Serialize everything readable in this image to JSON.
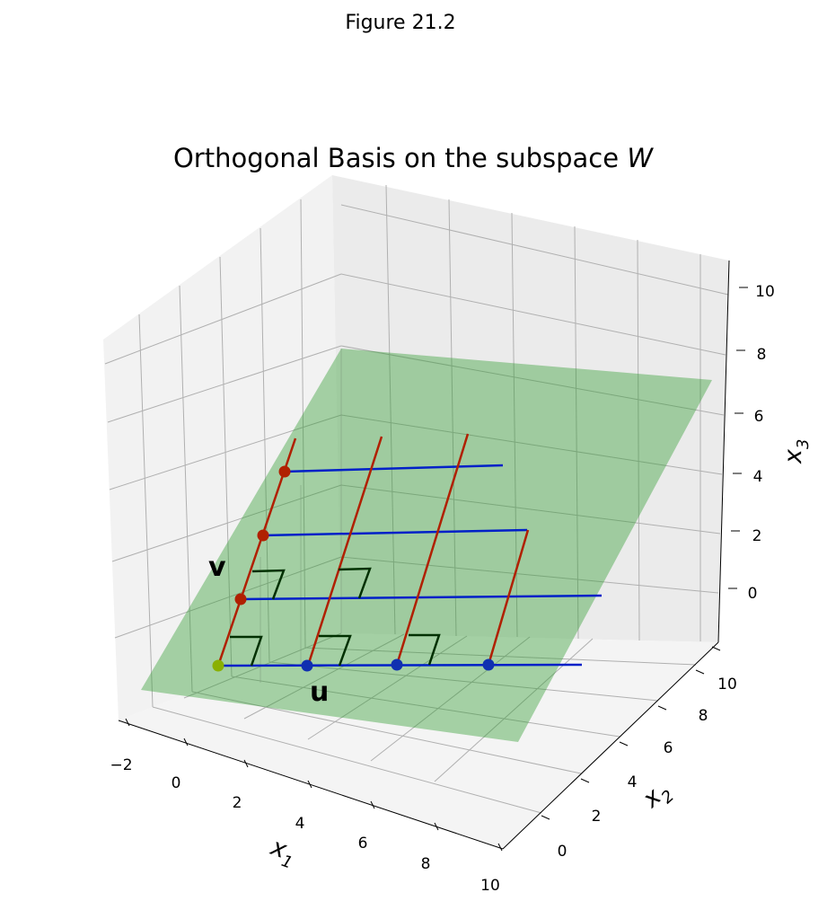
{
  "figure": {
    "suptitle": "Figure 21.2"
  },
  "chart_data": {
    "type": "3d-line",
    "title_prefix": "Orthogonal Basis on the subspace ",
    "title_math": "W",
    "axes": {
      "x": {
        "label": "x",
        "sub": "1",
        "ticks": [
          "−2",
          "0",
          "2",
          "4",
          "6",
          "8",
          "10"
        ]
      },
      "y": {
        "label": "x",
        "sub": "2",
        "ticks": [
          "0",
          "2",
          "4",
          "6",
          "8",
          "10"
        ]
      },
      "z": {
        "label": "x",
        "sub": "3",
        "ticks": [
          "0",
          "2",
          "4",
          "6",
          "8",
          "10"
        ]
      }
    },
    "grid": true,
    "colors": {
      "plane": "#2e9a2e",
      "u_lines": "#0020c8",
      "v_lines": "#b02000",
      "u_points": "#1030b0",
      "v_points": "#b02000",
      "origin_point": "#8ab000",
      "right_angle": "#003000",
      "pane": "#f2f2f2",
      "grid": "#b0b0b0"
    },
    "vector_labels": {
      "u": "u",
      "v": "v"
    },
    "u_points": [
      [
        1,
        1,
        0
      ],
      [
        2,
        2,
        0
      ],
      [
        3,
        3,
        0
      ]
    ],
    "v_points": [
      [
        -1,
        1,
        1
      ],
      [
        -2,
        2,
        2
      ],
      [
        -3,
        3,
        3
      ]
    ],
    "origin": [
      0,
      0,
      0
    ]
  }
}
